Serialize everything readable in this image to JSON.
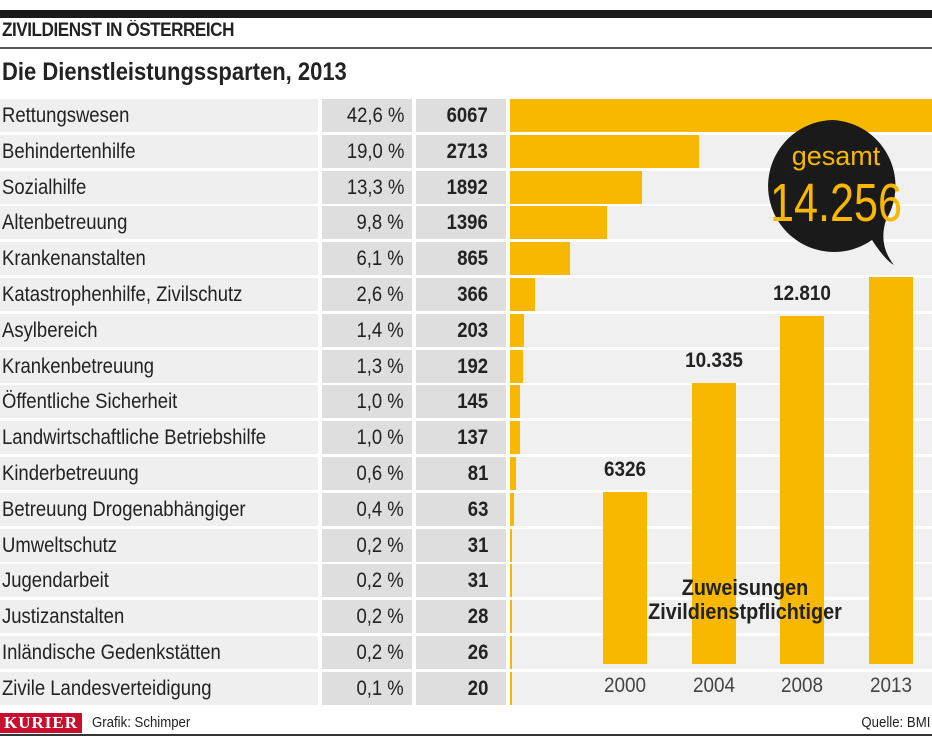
{
  "kicker": "ZIVILDIENST IN ÖSTERREICH",
  "title": "Die Dienstleistungssparten, 2013",
  "colors": {
    "bar": "#f9b800",
    "bubble": "#1a1a1a",
    "logo": "#c8102e"
  },
  "chart_data": [
    {
      "type": "bar",
      "orientation": "horizontal",
      "title": "Die Dienstleistungssparten, 2013",
      "categories": [
        "Rettungswesen",
        "Behindertenhilfe",
        "Sozialhilfe",
        "Altenbetreuung",
        "Krankenanstalten",
        "Katastrophenhilfe, Zivilschutz",
        "Asylbereich",
        "Krankenbetreuung",
        "Öffentliche Sicherheit",
        "Landwirtschaftliche Betriebshilfe",
        "Kinderbetreuung",
        "Betreuung Drogenabhängiger",
        "Umweltschutz",
        "Jugendarbeit",
        "Justizanstalten",
        "Inländische Gedenkstätten",
        "Zivile Landesverteidigung"
      ],
      "percent_labels": [
        "42,6 %",
        "19,0 %",
        "13,3 %",
        "9,8 %",
        "6,1 %",
        "2,6 %",
        "1,4 %",
        "1,3 %",
        "1,0 %",
        "1,0 %",
        "0,6 %",
        "0,4 %",
        "0,2 %",
        "0,2 %",
        "0,2 %",
        "0,2 %",
        "0,1 %"
      ],
      "values": [
        6067,
        2713,
        1892,
        1396,
        865,
        366,
        203,
        192,
        145,
        137,
        81,
        63,
        31,
        31,
        28,
        26,
        20
      ],
      "xlim": [
        0,
        6067
      ]
    },
    {
      "type": "bar",
      "orientation": "vertical",
      "title": "Zuweisungen Zivildienstpflichtiger",
      "categories": [
        "2000",
        "2004",
        "2008",
        "2013"
      ],
      "values": [
        6326,
        10335,
        12810,
        14256
      ],
      "value_labels": [
        "6326",
        "10.335",
        "12.810",
        ""
      ],
      "ylim": [
        0,
        14256
      ]
    }
  ],
  "bubble": {
    "label": "gesamt",
    "value": "14.256"
  },
  "caption_line1": "Zuweisungen",
  "caption_line2": "Zivildienstpflichtiger",
  "footer": {
    "logo": "KURIER",
    "credit": "Grafik: Schimper",
    "source": "Quelle: BMI"
  }
}
